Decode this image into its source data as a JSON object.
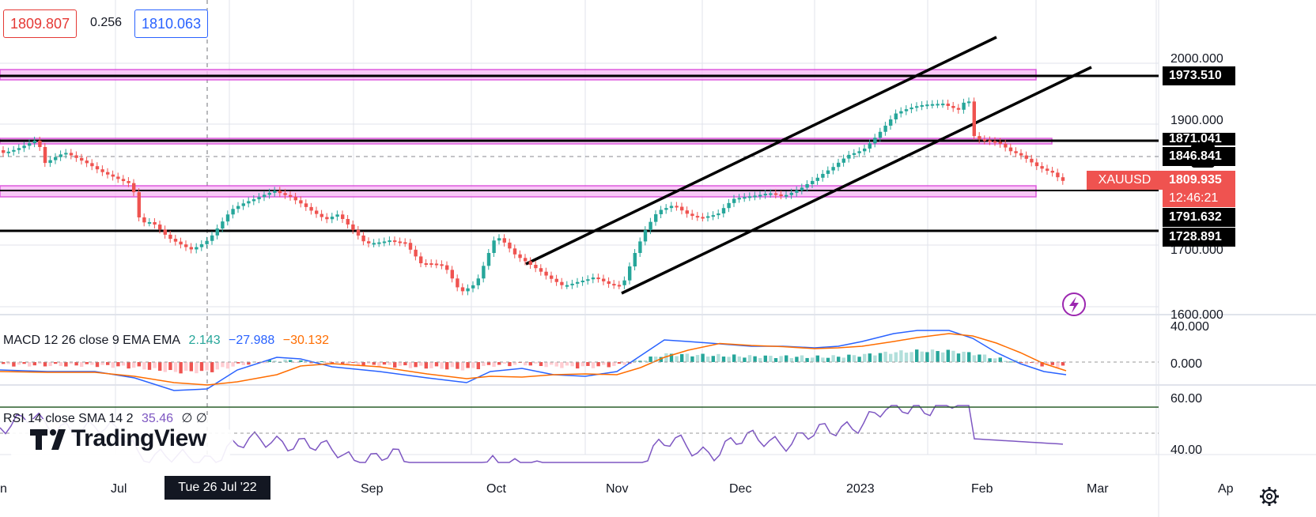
{
  "header": {
    "bid": "1809.807",
    "spread": "0.256",
    "ask": "1810.063"
  },
  "price_axis": {
    "ticks": [
      "2000.000",
      "1900.000",
      "1700.000",
      "1600.000"
    ],
    "labels": {
      "r1": "1973.510",
      "r2": "1871.041",
      "crosshair": "1846.841",
      "symbol": "XAUUSD",
      "last_price": "1809.935",
      "countdown": "12:46:21",
      "s1": "1791.632",
      "s2": "1728.891"
    }
  },
  "macd": {
    "legend": "MACD 12 26 close 9 EMA EMA",
    "hist": "2.143",
    "macd": "−27.988",
    "signal": "−30.132",
    "ticks": [
      "40.000",
      "0.000"
    ]
  },
  "rsi": {
    "legend": "RSI 14 close SMA 14 2",
    "value": "35.46",
    "extra": "∅ ∅",
    "ticks": [
      "60.00",
      "40.00"
    ]
  },
  "time_axis": {
    "ticks": [
      "n",
      "Jul",
      "Sep",
      "Oct",
      "Nov",
      "Dec",
      "2023",
      "Feb",
      "Mar",
      "Ap"
    ],
    "crosshair_date": "Tue 26 Jul '22"
  },
  "branding": {
    "logo_text": "TradingView"
  },
  "colors": {
    "up": "#26a69a",
    "down": "#ef5350",
    "macd_line": "#2962ff",
    "signal_line": "#ff6d00",
    "rsi_line": "#7e57c2",
    "zone": "#e040fb"
  }
}
